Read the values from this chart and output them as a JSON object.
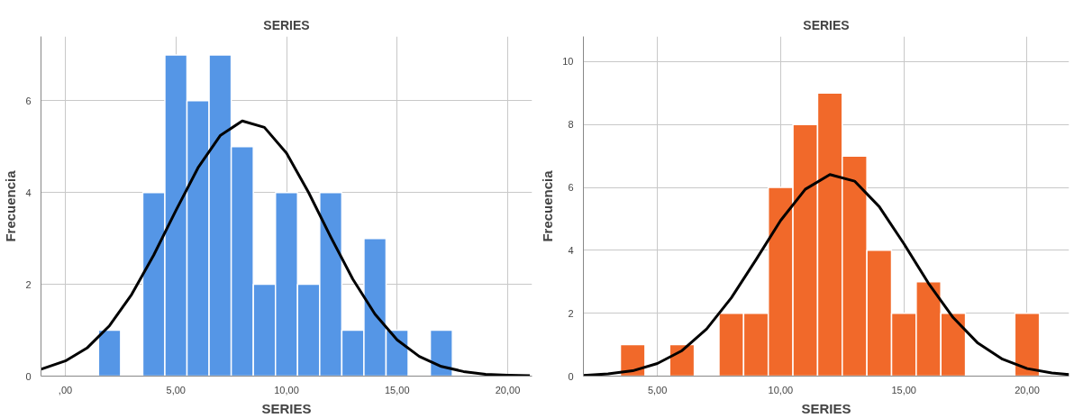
{
  "chart_data": [
    {
      "type": "histogram",
      "title": "SERIES",
      "xlabel": "SERIES",
      "ylabel": "Frecuencia",
      "xlim": [
        -1.1,
        21.1
      ],
      "ylim": [
        0,
        7.4
      ],
      "xticks": [
        {
          "value": 0,
          "label": ",00"
        },
        {
          "value": 5,
          "label": "5,00"
        },
        {
          "value": 10,
          "label": "10,00"
        },
        {
          "value": 15,
          "label": "15,00"
        },
        {
          "value": 20,
          "label": "20,00"
        }
      ],
      "yticks": [
        0,
        2,
        4,
        6
      ],
      "grid": true,
      "series": [
        {
          "color": "#5596e6",
          "bins": [
            1.5,
            2.5,
            3.5,
            4.5,
            5.5,
            6.5,
            7.5,
            8.5,
            9.5,
            10.5,
            11.5,
            12.5,
            13.5,
            14.5,
            15.5,
            16.5,
            17.5
          ],
          "values": [
            1,
            0,
            4,
            7,
            6,
            7,
            5,
            2,
            4,
            2,
            4,
            1,
            3,
            1,
            0,
            1
          ]
        },
        {
          "type": "line",
          "color": "#000000",
          "x": [
            -1.1,
            0,
            1,
            2,
            3,
            4,
            5,
            6,
            7,
            8,
            9,
            10,
            11,
            12,
            13,
            14,
            15,
            16,
            17,
            18,
            19,
            20,
            21
          ],
          "values": [
            0.15,
            0.33,
            0.62,
            1.1,
            1.78,
            2.64,
            3.61,
            4.54,
            5.24,
            5.56,
            5.42,
            4.86,
            4.0,
            3.03,
            2.11,
            1.35,
            0.79,
            0.43,
            0.21,
            0.1,
            0.04,
            0.02,
            0.01
          ]
        }
      ]
    },
    {
      "type": "histogram",
      "title": "SERIES",
      "xlabel": "SERIES",
      "ylabel": "Frecuencia",
      "xlim": [
        2,
        21.7
      ],
      "ylim": [
        0,
        10.8
      ],
      "xticks": [
        {
          "value": 5,
          "label": "5,00"
        },
        {
          "value": 10,
          "label": "10,00"
        },
        {
          "value": 15,
          "label": "15,00"
        },
        {
          "value": 20,
          "label": "20,00"
        }
      ],
      "yticks": [
        0,
        2,
        4,
        6,
        8,
        10
      ],
      "grid": true,
      "series": [
        {
          "color": "#f1692a",
          "bins": [
            3.5,
            4.5,
            5.5,
            6.5,
            7.5,
            8.5,
            9.5,
            10.5,
            11.5,
            12.5,
            13.5,
            14.5,
            15.5,
            16.5,
            17.5,
            18.5,
            19.5,
            20.5
          ],
          "values": [
            1,
            0,
            1,
            0,
            2,
            2,
            6,
            8,
            9,
            7,
            4,
            2,
            3,
            2,
            0,
            0,
            2
          ]
        },
        {
          "type": "line",
          "color": "#000000",
          "x": [
            2,
            3,
            4,
            5,
            6,
            7,
            8,
            9,
            10,
            11,
            12,
            13,
            14,
            15,
            16,
            17,
            18,
            19,
            20,
            21,
            21.7
          ],
          "values": [
            0.02,
            0.07,
            0.17,
            0.4,
            0.81,
            1.5,
            2.49,
            3.7,
            4.95,
            5.94,
            6.41,
            6.2,
            5.39,
            4.21,
            2.95,
            1.86,
            1.05,
            0.54,
            0.24,
            0.1,
            0.05
          ]
        }
      ]
    }
  ]
}
